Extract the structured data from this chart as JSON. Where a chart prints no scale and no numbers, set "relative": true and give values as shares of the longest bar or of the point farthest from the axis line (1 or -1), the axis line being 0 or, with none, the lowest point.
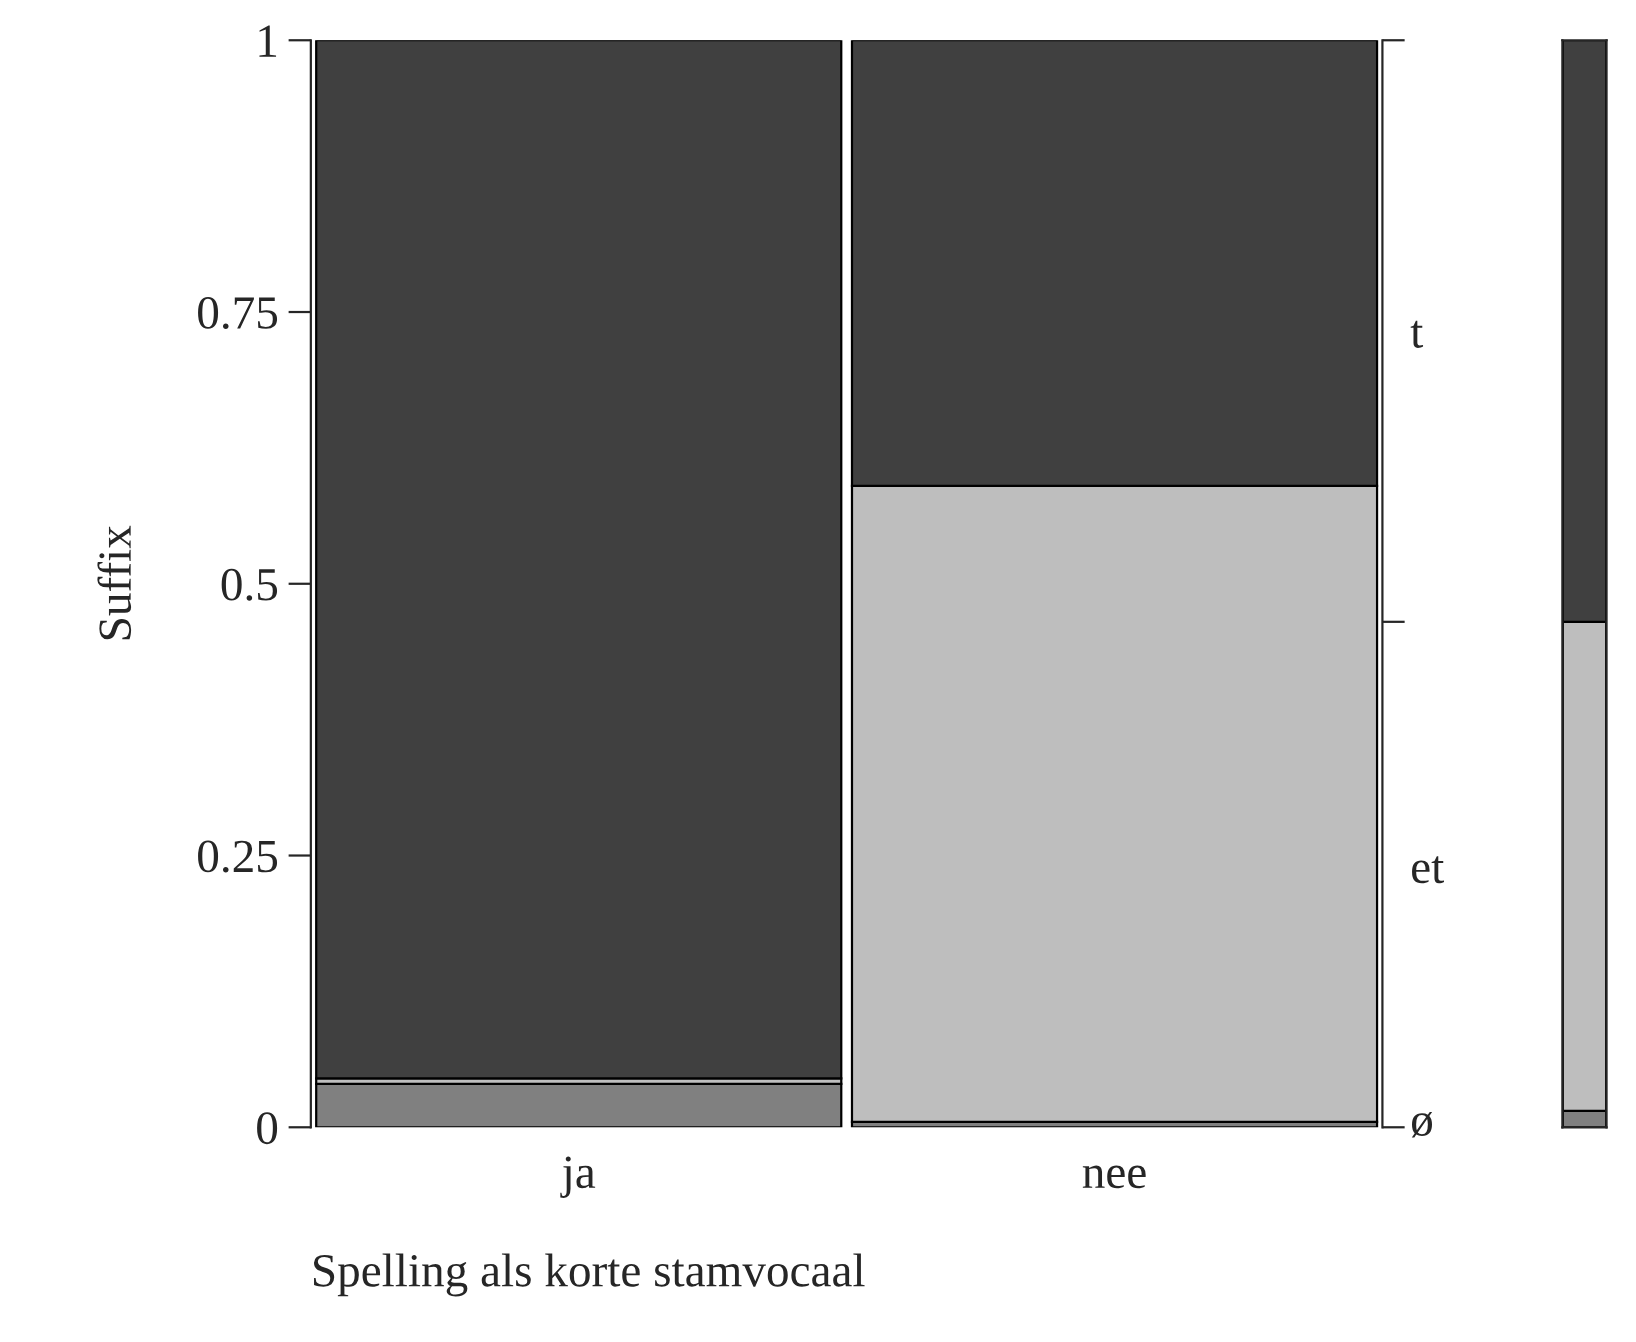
{
  "chart_data": [
    {
      "type": "bar",
      "stacked": true,
      "xlabel": "Spelling als korte stamvocaal",
      "ylabel": "Suffix",
      "categories": [
        "ja",
        "nee"
      ],
      "series": [
        {
          "name": "ø",
          "color": "#808080",
          "values": [
            0.04,
            0.005
          ]
        },
        {
          "name": "et",
          "color": "#bebebe",
          "values": [
            0.005,
            0.585
          ]
        },
        {
          "name": "t",
          "color": "#404040",
          "values": [
            0.955,
            0.41
          ]
        }
      ],
      "ylim": [
        0,
        1
      ],
      "yticks": [
        0,
        {
          "value": 0.25,
          "label": "0.25"
        },
        {
          "value": 0.5,
          "label": "0.5"
        },
        {
          "value": 0.75,
          "label": "0.75"
        },
        1
      ],
      "grid": false,
      "legend": false
    },
    {
      "type": "bar",
      "stacked": true,
      "relative": true,
      "categories": [
        null
      ],
      "series": [
        {
          "color": "#808080",
          "values": [
            0.015
          ]
        },
        {
          "color": "#bebebe",
          "values": [
            0.45
          ]
        },
        {
          "color": "#404040",
          "values": [
            0.535
          ]
        }
      ]
    }
  ]
}
